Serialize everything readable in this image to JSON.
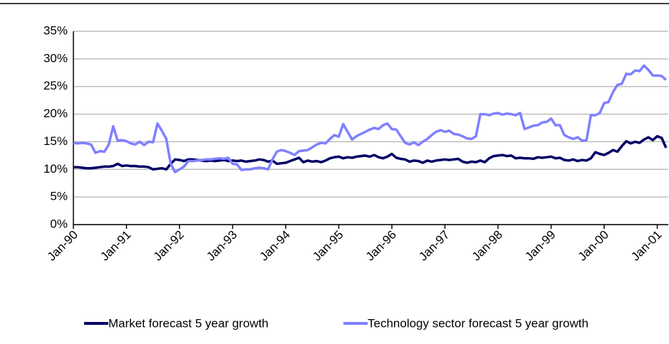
{
  "chart_data": {
    "type": "line",
    "categories": [
      "Jan-90",
      null,
      null,
      null,
      null,
      null,
      null,
      null,
      null,
      null,
      null,
      null,
      "Jan-91",
      null,
      null,
      null,
      null,
      null,
      null,
      null,
      null,
      null,
      null,
      null,
      "Jan-92",
      null,
      null,
      null,
      null,
      null,
      null,
      null,
      null,
      null,
      null,
      null,
      "Jan-93",
      null,
      null,
      null,
      null,
      null,
      null,
      null,
      null,
      null,
      null,
      null,
      "Jan-94",
      null,
      null,
      null,
      null,
      null,
      null,
      null,
      null,
      null,
      null,
      null,
      "Jan-95",
      null,
      null,
      null,
      null,
      null,
      null,
      null,
      null,
      null,
      null,
      null,
      "Jan-96",
      null,
      null,
      null,
      null,
      null,
      null,
      null,
      null,
      null,
      null,
      null,
      "Jan-97",
      null,
      null,
      null,
      null,
      null,
      null,
      null,
      null,
      null,
      null,
      null,
      "Jan-98",
      null,
      null,
      null,
      null,
      null,
      null,
      null,
      null,
      null,
      null,
      null,
      "Jan-99",
      null,
      null,
      null,
      null,
      null,
      null,
      null,
      null,
      null,
      null,
      null,
      "Jan-00",
      null,
      null,
      null,
      null,
      null,
      null,
      null,
      null,
      null,
      null,
      null,
      "Jan-01",
      null,
      null
    ],
    "series": [
      {
        "name": "Market forecast 5 year growth",
        "color": "#000066",
        "values": [
          10.4,
          10.4,
          10.3,
          10.2,
          10.2,
          10.3,
          10.4,
          10.5,
          10.5,
          10.6,
          11.0,
          10.6,
          10.7,
          10.6,
          10.6,
          10.5,
          10.5,
          10.4,
          10.0,
          10.1,
          10.2,
          10.0,
          11.0,
          11.8,
          11.7,
          11.5,
          11.8,
          11.8,
          11.7,
          11.6,
          11.5,
          11.6,
          11.5,
          11.6,
          11.7,
          11.5,
          11.6,
          11.5,
          11.6,
          11.4,
          11.5,
          11.6,
          11.8,
          11.7,
          11.4,
          11.6,
          11.0,
          11.1,
          11.2,
          11.5,
          11.8,
          12.1,
          11.3,
          11.6,
          11.4,
          11.5,
          11.3,
          11.6,
          12.0,
          12.2,
          12.3,
          12.0,
          12.2,
          12.1,
          12.3,
          12.4,
          12.5,
          12.3,
          12.6,
          12.2,
          12.0,
          12.3,
          12.8,
          12.1,
          11.9,
          11.8,
          11.4,
          11.6,
          11.5,
          11.2,
          11.6,
          11.4,
          11.6,
          11.7,
          11.8,
          11.7,
          11.8,
          11.9,
          11.4,
          11.2,
          11.4,
          11.3,
          11.6,
          11.3,
          12.0,
          12.4,
          12.5,
          12.6,
          12.4,
          12.5,
          12.0,
          12.1,
          12.0,
          12.0,
          11.9,
          12.2,
          12.1,
          12.2,
          12.3,
          12.0,
          12.1,
          11.7,
          11.6,
          11.8,
          11.5,
          11.7,
          11.6,
          12.0,
          13.1,
          12.8,
          12.6,
          13.0,
          13.5,
          13.2,
          14.2,
          15.1,
          14.7,
          15.0,
          14.8,
          15.4,
          15.8,
          15.3,
          16.0,
          15.7,
          13.9
        ]
      },
      {
        "name": "Technology sector forecast 5 year growth",
        "color": "#8080ff",
        "values": [
          14.8,
          14.7,
          14.8,
          14.7,
          14.5,
          13.0,
          13.3,
          13.2,
          14.5,
          17.8,
          15.2,
          15.3,
          15.1,
          14.7,
          14.5,
          15.0,
          14.4,
          15.0,
          14.9,
          18.3,
          17.0,
          15.5,
          11.0,
          9.5,
          10.0,
          10.5,
          11.5,
          11.5,
          11.6,
          11.7,
          11.8,
          11.8,
          11.9,
          12.0,
          11.9,
          12.1,
          11.0,
          10.9,
          9.9,
          10.0,
          10.0,
          10.2,
          10.3,
          10.2,
          10.0,
          11.8,
          13.2,
          13.5,
          13.3,
          13.0,
          12.6,
          13.3,
          13.4,
          13.5,
          14.0,
          14.5,
          14.8,
          14.7,
          15.5,
          16.2,
          15.9,
          18.2,
          16.8,
          15.4,
          16.0,
          16.4,
          16.8,
          17.2,
          17.5,
          17.3,
          18.0,
          18.3,
          17.3,
          17.2,
          16.0,
          14.8,
          14.5,
          14.9,
          14.4,
          15.0,
          15.5,
          16.2,
          16.8,
          17.1,
          16.8,
          17.0,
          16.4,
          16.3,
          16.0,
          15.6,
          15.5,
          16.0,
          20.0,
          20.0,
          19.8,
          20.1,
          20.2,
          19.9,
          20.1,
          20.0,
          19.8,
          20.2,
          17.3,
          17.6,
          17.9,
          18.0,
          18.5,
          18.6,
          19.2,
          18.0,
          18.0,
          16.2,
          15.8,
          15.5,
          15.8,
          15.2,
          15.3,
          19.8,
          19.8,
          20.2,
          22.0,
          22.2,
          24.0,
          25.3,
          25.5,
          27.3,
          27.2,
          27.9,
          27.8,
          28.8,
          28.0,
          27.0,
          27.0,
          26.9,
          26.2
        ]
      }
    ],
    "ylim": [
      0,
      35
    ],
    "yticks": [
      {
        "value": 0,
        "label": "0%"
      },
      {
        "value": 5,
        "label": "5%"
      },
      {
        "value": 10,
        "label": "10%"
      },
      {
        "value": 15,
        "label": "15%"
      },
      {
        "value": 20,
        "label": "20%"
      },
      {
        "value": 25,
        "label": "25%"
      },
      {
        "value": 30,
        "label": "30%"
      },
      {
        "value": 35,
        "label": "35%"
      }
    ],
    "grid": true,
    "legend": "bottom"
  }
}
